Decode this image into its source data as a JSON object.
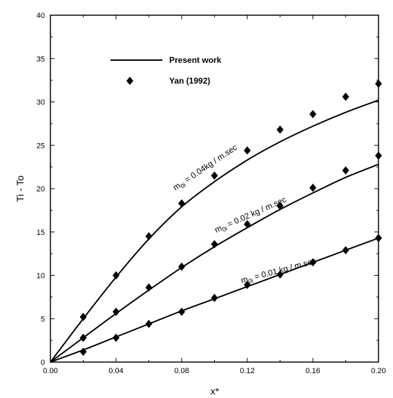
{
  "chart_data": {
    "type": "line",
    "xlabel": "x*",
    "ylabel": "Ti - To",
    "xlim": [
      0,
      0.2
    ],
    "ylim": [
      0,
      40
    ],
    "xticks": [
      "0.00",
      "0.04",
      "0.08",
      "0.12",
      "0.16",
      "0.20"
    ],
    "yticks": [
      "0",
      "5",
      "10",
      "15",
      "20",
      "25",
      "30",
      "35",
      "40"
    ],
    "grid": false,
    "legend_position": "top-left",
    "legend": {
      "line_label": "Present work",
      "marker_label": "Yan (1992)"
    },
    "series": [
      {
        "label_prefix": "m",
        "label_sub": "0i",
        "label_suffix": " = 0.04kg / m.sec",
        "curve": {
          "x": [
            0,
            0.02,
            0.04,
            0.06,
            0.08,
            0.1,
            0.12,
            0.14,
            0.16,
            0.18,
            0.2
          ],
          "y": [
            0,
            5.0,
            9.8,
            14.2,
            17.9,
            20.8,
            23.3,
            25.4,
            27.2,
            28.8,
            30.2
          ]
        },
        "markers": {
          "x": [
            0.02,
            0.04,
            0.06,
            0.08,
            0.1,
            0.12,
            0.14,
            0.16,
            0.18,
            0.2
          ],
          "y": [
            5.2,
            10.0,
            14.5,
            18.3,
            21.5,
            24.4,
            26.8,
            28.6,
            30.6,
            32.1
          ]
        }
      },
      {
        "label_prefix": "m",
        "label_sub": "0i",
        "label_suffix": " = 0.02 kg / m.sec",
        "curve": {
          "x": [
            0,
            0.02,
            0.04,
            0.06,
            0.08,
            0.1,
            0.12,
            0.14,
            0.16,
            0.18,
            0.2
          ],
          "y": [
            0,
            2.8,
            5.6,
            8.3,
            10.9,
            13.3,
            15.5,
            17.6,
            19.5,
            21.3,
            22.8
          ]
        },
        "markers": {
          "x": [
            0.02,
            0.04,
            0.06,
            0.08,
            0.1,
            0.12,
            0.14,
            0.16,
            0.18,
            0.2
          ],
          "y": [
            2.8,
            5.8,
            8.6,
            11.0,
            13.6,
            15.9,
            18.0,
            20.1,
            22.1,
            23.8
          ]
        }
      },
      {
        "label_prefix": "m",
        "label_sub": "0i",
        "label_suffix": " = 0.01 kg / m.sec",
        "curve": {
          "x": [
            0,
            0.02,
            0.04,
            0.06,
            0.08,
            0.1,
            0.12,
            0.14,
            0.16,
            0.18,
            0.2
          ],
          "y": [
            0,
            1.4,
            2.9,
            4.4,
            5.9,
            7.3,
            8.7,
            10.1,
            11.5,
            12.9,
            14.3
          ]
        },
        "markers": {
          "x": [
            0.02,
            0.04,
            0.06,
            0.08,
            0.1,
            0.12,
            0.14,
            0.16,
            0.18,
            0.2
          ],
          "y": [
            1.2,
            2.8,
            4.4,
            5.8,
            7.4,
            8.9,
            10.1,
            11.5,
            12.9,
            14.3
          ]
        }
      }
    ]
  }
}
